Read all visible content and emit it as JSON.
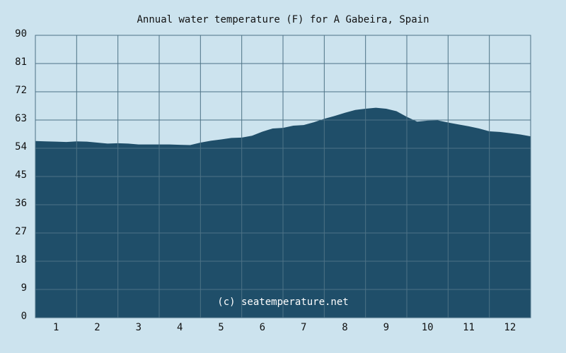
{
  "chart_data": {
    "type": "area",
    "title": "Annual water temperature (F) for A Gabeira, Spain",
    "annotation": "(c) seatemperature.net",
    "categories": [
      "1",
      "2",
      "3",
      "4",
      "5",
      "6",
      "7",
      "8",
      "9",
      "10",
      "11",
      "12"
    ],
    "xlim": [
      0,
      12
    ],
    "ylim": [
      0,
      90
    ],
    "yticks": [
      0,
      9,
      18,
      27,
      36,
      45,
      54,
      63,
      72,
      81,
      90
    ],
    "grid": true,
    "series": [
      {
        "color": "#1f4e69",
        "x": [
          0,
          0.25,
          0.5,
          0.75,
          1,
          1.25,
          1.5,
          1.75,
          2,
          2.25,
          2.5,
          2.75,
          3,
          3.25,
          3.5,
          3.75,
          4,
          4.25,
          4.5,
          4.75,
          5,
          5.25,
          5.5,
          5.75,
          6,
          6.25,
          6.5,
          6.75,
          7,
          7.25,
          7.5,
          7.75,
          8,
          8.25,
          8.5,
          8.75,
          9,
          9.25,
          9.5,
          9.75,
          10,
          10.25,
          10.5,
          10.75,
          11,
          11.25,
          11.5,
          11.75,
          12
        ],
        "values": [
          56.3,
          56.2,
          56.1,
          56.0,
          56.2,
          56.1,
          55.8,
          55.5,
          55.6,
          55.5,
          55.2,
          55.2,
          55.2,
          55.2,
          55.1,
          55.0,
          55.8,
          56.4,
          56.8,
          57.3,
          57.4,
          58.0,
          59.3,
          60.3,
          60.5,
          61.2,
          61.4,
          62.3,
          63.4,
          64.3,
          65.3,
          66.2,
          66.6,
          66.9,
          66.6,
          65.8,
          64.0,
          62.5,
          62.8,
          62.9,
          62.2,
          61.6,
          61.0,
          60.3,
          59.4,
          59.2,
          58.8,
          58.4,
          57.8
        ]
      }
    ]
  }
}
